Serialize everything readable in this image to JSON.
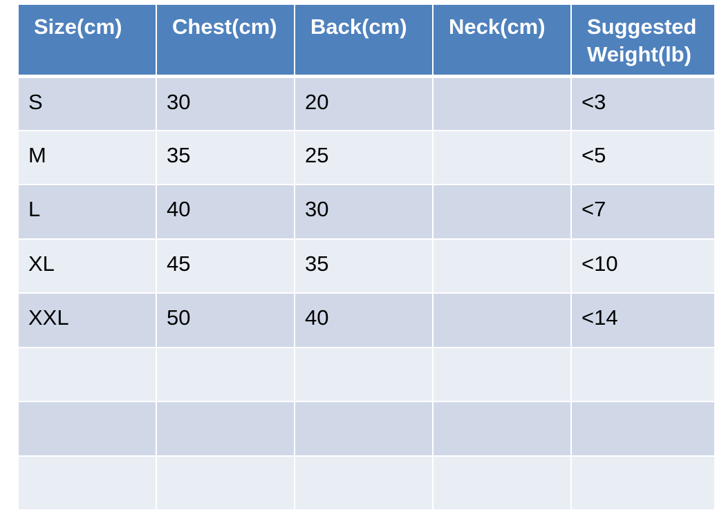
{
  "table": {
    "headers": [
      "Size(cm)",
      "Chest(cm)",
      "Back(cm)",
      "Neck(cm)",
      "Suggested Weight(lb)"
    ],
    "rows": [
      [
        "S",
        "30",
        "20",
        "",
        "<3"
      ],
      [
        "M",
        "35",
        "25",
        "",
        "<5"
      ],
      [
        "L",
        "40",
        "30",
        "",
        "<7"
      ],
      [
        "XL",
        "45",
        "35",
        "",
        "<10"
      ],
      [
        "XXL",
        "50",
        "40",
        "",
        "<14"
      ],
      [
        "",
        "",
        "",
        "",
        ""
      ],
      [
        "",
        "",
        "",
        "",
        ""
      ],
      [
        "",
        "",
        "",
        "",
        ""
      ]
    ]
  },
  "colors": {
    "header_bg": "#4f81bd",
    "row_odd_bg": "#d0d8e8",
    "row_even_bg": "#e9edf4",
    "header_text": "#ffffff",
    "body_text": "#000000"
  }
}
